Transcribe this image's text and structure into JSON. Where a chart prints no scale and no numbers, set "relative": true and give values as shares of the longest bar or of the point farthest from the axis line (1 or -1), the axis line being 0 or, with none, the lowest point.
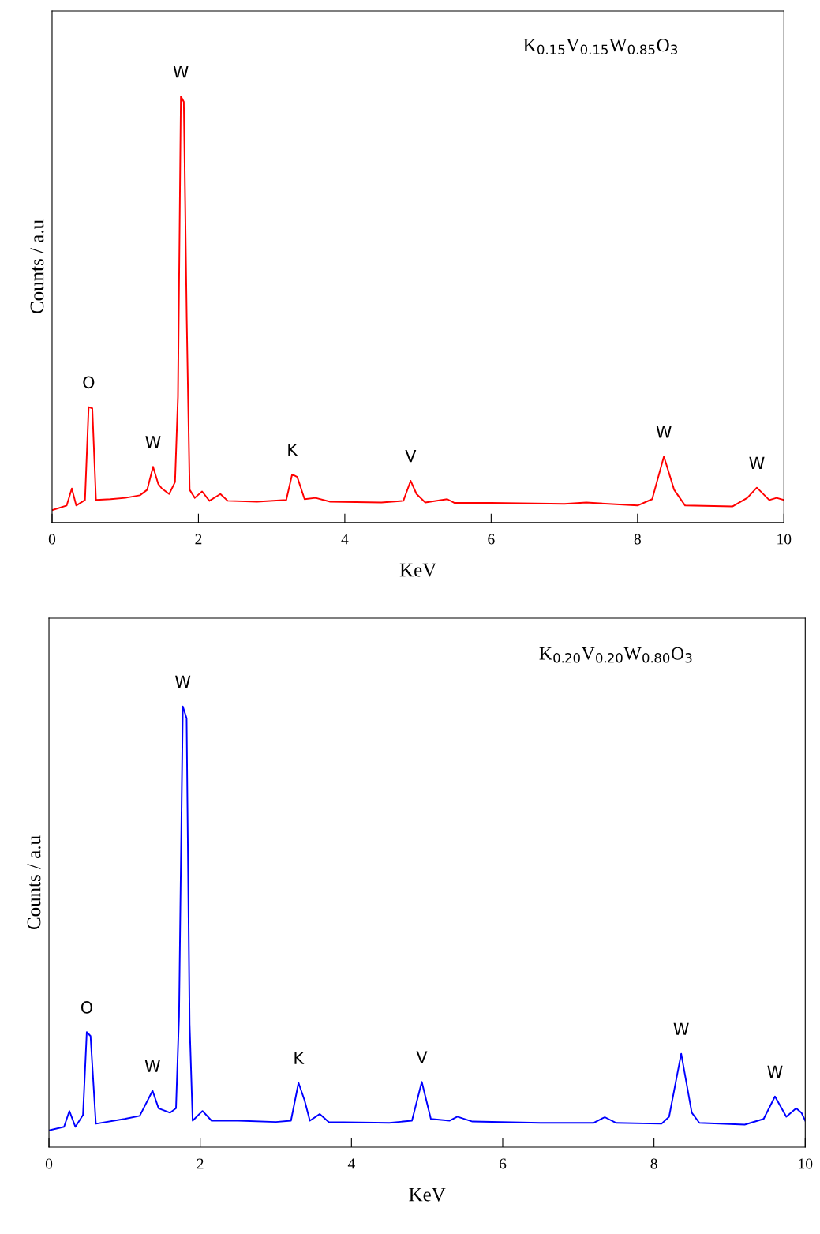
{
  "chart_data": [
    {
      "type": "line",
      "relative": true,
      "xlabel": "KeV",
      "ylabel": "Counts / a.u",
      "xlim": [
        0,
        10
      ],
      "xticks": [
        0,
        2,
        4,
        6,
        8,
        10
      ],
      "grid": false,
      "legend": false,
      "tick_labels": "x",
      "annotations": [
        "K$_{0.15}$V$_{0.15}$W$_{0.85}$O$_{3}$",
        {
          "text": "O",
          "x": 0.5,
          "y": 0.271
        },
        {
          "text": "W",
          "x": 1.38,
          "y": 0.131
        },
        {
          "text": "W",
          "x": 1.76,
          "y": 1.0
        },
        {
          "text": "K",
          "x": 3.28,
          "y": 0.113
        },
        {
          "text": "V",
          "x": 4.9,
          "y": 0.098
        },
        {
          "text": "W",
          "x": 8.36,
          "y": 0.155
        },
        {
          "text": "W",
          "x": 9.63,
          "y": 0.082
        }
      ],
      "series": [
        {
          "color": "#ff0000",
          "x": [
            0,
            0.2,
            0.27,
            0.33,
            0.45,
            0.5,
            0.55,
            0.6,
            0.8,
            1.0,
            1.2,
            1.3,
            1.38,
            1.45,
            1.5,
            1.6,
            1.68,
            1.72,
            1.76,
            1.8,
            1.84,
            1.88,
            1.95,
            2.05,
            2.15,
            2.3,
            2.4,
            2.8,
            3.2,
            3.28,
            3.35,
            3.45,
            3.6,
            3.8,
            4.5,
            4.8,
            4.9,
            4.98,
            5.1,
            5.4,
            5.5,
            6.0,
            7.0,
            7.3,
            8.0,
            8.2,
            8.36,
            8.5,
            8.65,
            9.3,
            9.5,
            9.63,
            9.8,
            9.9,
            10.0
          ],
          "values": [
            0.029,
            0.04,
            0.08,
            0.04,
            0.053,
            0.271,
            0.268,
            0.053,
            0.055,
            0.058,
            0.064,
            0.077,
            0.131,
            0.091,
            0.08,
            0.067,
            0.095,
            0.295,
            1.0,
            0.987,
            0.477,
            0.077,
            0.058,
            0.073,
            0.051,
            0.067,
            0.051,
            0.049,
            0.053,
            0.113,
            0.107,
            0.055,
            0.058,
            0.049,
            0.047,
            0.051,
            0.098,
            0.067,
            0.047,
            0.055,
            0.046,
            0.046,
            0.044,
            0.047,
            0.04,
            0.055,
            0.155,
            0.077,
            0.04,
            0.038,
            0.058,
            0.082,
            0.053,
            0.058,
            0.053
          ]
        }
      ]
    },
    {
      "type": "line",
      "relative": true,
      "xlabel": "KeV",
      "ylabel": "Counts / a.u",
      "xlim": [
        0,
        10
      ],
      "xticks": [
        0,
        2,
        4,
        6,
        8,
        10
      ],
      "grid": false,
      "legend": false,
      "tick_labels": "x",
      "annotations": [
        "K$_{0.20}$V$_{0.20}$W$_{0.80}$O$_{3}$",
        {
          "text": "O",
          "x": 0.5,
          "y": 0.261
        },
        {
          "text": "W",
          "x": 1.37,
          "y": 0.128
        },
        {
          "text": "W",
          "x": 1.77,
          "y": 1.0
        },
        {
          "text": "K",
          "x": 3.3,
          "y": 0.146
        },
        {
          "text": "V",
          "x": 4.93,
          "y": 0.148
        },
        {
          "text": "W",
          "x": 8.36,
          "y": 0.212
        },
        {
          "text": "W",
          "x": 9.6,
          "y": 0.115
        }
      ],
      "series": [
        {
          "color": "#0000ff",
          "x": [
            0,
            0.2,
            0.27,
            0.35,
            0.45,
            0.5,
            0.55,
            0.62,
            1.0,
            1.2,
            1.37,
            1.45,
            1.6,
            1.68,
            1.72,
            1.77,
            1.82,
            1.86,
            1.9,
            2.03,
            2.15,
            2.5,
            3.0,
            3.2,
            3.3,
            3.38,
            3.45,
            3.58,
            3.7,
            4.5,
            4.8,
            4.93,
            5.05,
            5.3,
            5.4,
            5.6,
            6.5,
            7.2,
            7.35,
            7.5,
            8.1,
            8.2,
            8.36,
            8.5,
            8.6,
            9.2,
            9.45,
            9.6,
            9.75,
            9.88,
            9.95,
            10.0
          ],
          "values": [
            0.038,
            0.046,
            0.082,
            0.046,
            0.073,
            0.261,
            0.252,
            0.053,
            0.064,
            0.071,
            0.128,
            0.088,
            0.078,
            0.088,
            0.297,
            1.0,
            0.973,
            0.279,
            0.06,
            0.082,
            0.06,
            0.06,
            0.057,
            0.06,
            0.146,
            0.106,
            0.06,
            0.075,
            0.057,
            0.055,
            0.06,
            0.148,
            0.064,
            0.06,
            0.069,
            0.058,
            0.055,
            0.055,
            0.068,
            0.055,
            0.053,
            0.069,
            0.212,
            0.078,
            0.055,
            0.051,
            0.064,
            0.115,
            0.069,
            0.088,
            0.078,
            0.06
          ]
        }
      ]
    }
  ]
}
